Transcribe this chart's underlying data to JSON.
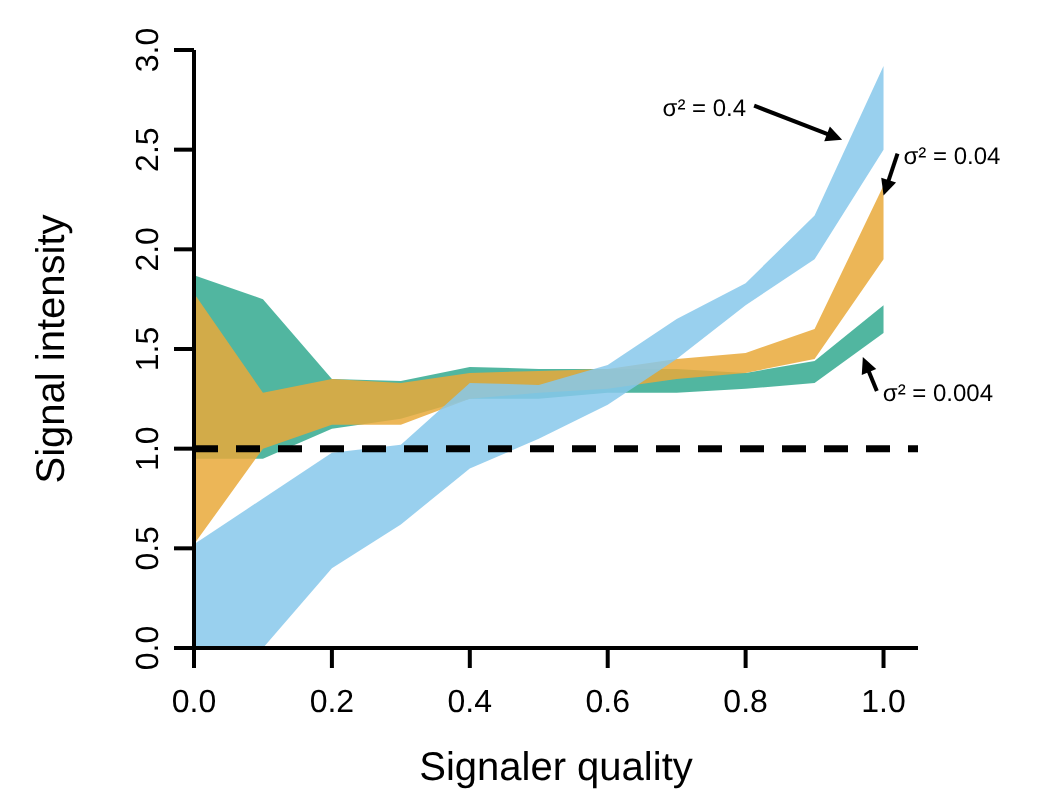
{
  "chart_data": {
    "type": "area",
    "xlabel": "Signaler quality",
    "ylabel": "Signal intensity",
    "x": [
      0,
      0.1,
      0.2,
      0.3,
      0.4,
      0.5,
      0.6,
      0.7,
      0.8,
      0.9,
      1.0
    ],
    "xlim": [
      0,
      1.05
    ],
    "xticks": [
      {
        "value": 0,
        "label": "0.0"
      },
      0.2,
      0.4,
      0.6,
      0.8,
      {
        "value": 1,
        "label": "1.0"
      }
    ],
    "ylim": [
      0,
      3
    ],
    "yticks": [
      {
        "value": 0,
        "label": "0.0"
      },
      0.5,
      {
        "value": 1,
        "label": "1.0"
      },
      1.5,
      {
        "value": 2,
        "label": "2.0"
      },
      2.5,
      {
        "value": 3,
        "label": "3.0"
      }
    ],
    "grid": false,
    "series": [
      {
        "color": "#33a98f",
        "values": [
          null,
          null,
          null,
          null,
          null,
          null,
          null,
          null,
          null,
          null,
          null
        ],
        "lower": [
          0.95,
          0.95,
          1.1,
          1.15,
          1.25,
          1.25,
          1.28,
          1.28,
          1.3,
          1.33,
          1.58
        ],
        "upper": [
          1.87,
          1.75,
          1.35,
          1.34,
          1.41,
          1.4,
          1.4,
          1.4,
          1.38,
          1.44,
          1.72
        ]
      },
      {
        "color": "#e9a93a",
        "values": [
          null,
          null,
          null,
          null,
          null,
          null,
          null,
          null,
          null,
          null,
          null
        ],
        "lower": [
          0.52,
          1.0,
          1.12,
          1.12,
          1.25,
          1.28,
          1.3,
          1.35,
          1.38,
          1.45,
          1.95
        ],
        "upper": [
          1.78,
          1.28,
          1.35,
          1.33,
          1.38,
          1.39,
          1.4,
          1.45,
          1.48,
          1.6,
          2.32
        ]
      },
      {
        "color": "#87c8eb",
        "values": [
          null,
          null,
          null,
          null,
          null,
          null,
          null,
          null,
          null,
          null,
          null
        ],
        "lower": [
          0,
          0,
          0.4,
          0.62,
          0.9,
          1.05,
          1.22,
          1.45,
          1.72,
          1.95,
          2.5
        ],
        "upper": [
          0.52,
          0.75,
          0.98,
          1.02,
          1.33,
          1.32,
          1.42,
          1.65,
          1.83,
          2.17,
          2.92
        ]
      }
    ],
    "ref_lines": [
      {
        "axis": "y",
        "value": 1,
        "color": "#000000",
        "line_style": "dashed"
      }
    ],
    "annotations": [
      {
        "text": "σ² = 0.4",
        "x": 0.94,
        "y": 2.55
      },
      {
        "text": "σ² = 0.04",
        "x": 1.0,
        "y": 2.27
      },
      {
        "text": "σ² = 0.004",
        "x": 0.97,
        "y": 1.46
      }
    ]
  }
}
